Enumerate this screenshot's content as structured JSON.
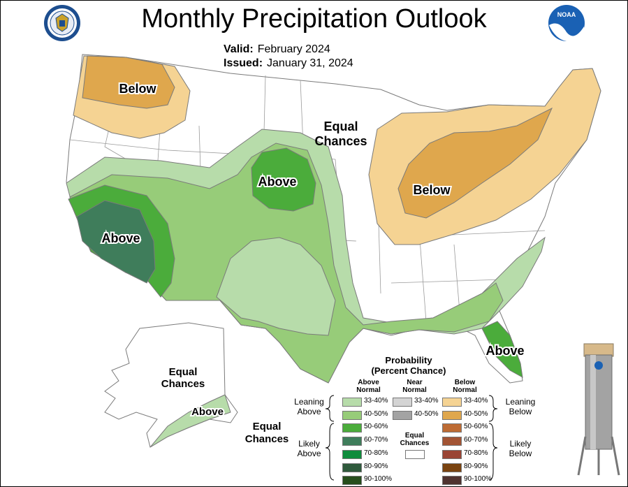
{
  "header": {
    "title": "Monthly Precipitation Outlook",
    "valid_label": "Valid:",
    "valid_value": "February 2024",
    "issued_label": "Issued:",
    "issued_value": "January 31, 2024"
  },
  "logos": {
    "left": "doc-seal-icon",
    "right": "noaa-logo-icon"
  },
  "map": {
    "labels": {
      "nw_below": "Below",
      "equal_chances_1": "Equal",
      "equal_chances_2": "Chances",
      "west_above": "Above",
      "plains_above": "Above",
      "east_below": "Below",
      "fl_above": "Above",
      "ak_equal_1": "Equal",
      "ak_equal_2": "Chances",
      "ak_above": "Above",
      "ak_south_equal_1": "Equal",
      "ak_south_equal_2": "Chances"
    },
    "colors": {
      "above_33_40": "#b7dcaa",
      "above_40_50": "#97cc79",
      "above_50_60": "#4bac3b",
      "above_60_70": "#3f7d5b",
      "below_33_40": "#f5d393",
      "below_40_50": "#dfa74d",
      "outline": "#7a7a7a",
      "land": "#ffffff",
      "boundary": "#9a9a9a"
    }
  },
  "legend": {
    "title_1": "Probability",
    "title_2": "(Percent Chance)",
    "col_above_1": "Above",
    "col_above_2": "Normal",
    "col_near_1": "Near",
    "col_near_2": "Normal",
    "col_below_1": "Below",
    "col_below_2": "Normal",
    "leaning_above_1": "Leaning",
    "leaning_above_2": "Above",
    "leaning_below_1": "Leaning",
    "leaning_below_2": "Below",
    "likely_above_1": "Likely",
    "likely_above_2": "Above",
    "likely_below_1": "Likely",
    "likely_below_2": "Below",
    "equal_1": "Equal",
    "equal_2": "Chances",
    "above": [
      {
        "label": "33-40%",
        "color": "#b7dcaa"
      },
      {
        "label": "40-50%",
        "color": "#97cc79"
      },
      {
        "label": "50-60%",
        "color": "#4bac3b"
      },
      {
        "label": "60-70%",
        "color": "#3f7d5b"
      },
      {
        "label": "70-80%",
        "color": "#0f8c3c"
      },
      {
        "label": "80-90%",
        "color": "#2f5a3c"
      },
      {
        "label": "90-100%",
        "color": "#264e1c"
      }
    ],
    "near": [
      {
        "label": "33-40%",
        "color": "#d4d4d4"
      },
      {
        "label": "40-50%",
        "color": "#a3a3a3"
      }
    ],
    "below": [
      {
        "label": "33-40%",
        "color": "#f5d393"
      },
      {
        "label": "40-50%",
        "color": "#dfa74d"
      },
      {
        "label": "50-60%",
        "color": "#bd6b34"
      },
      {
        "label": "60-70%",
        "color": "#a25434"
      },
      {
        "label": "70-80%",
        "color": "#9a4535"
      },
      {
        "label": "80-90%",
        "color": "#7a4310"
      },
      {
        "label": "90-100%",
        "color": "#4f3330"
      }
    ]
  },
  "gauge_icon": "rain-gauge-icon"
}
